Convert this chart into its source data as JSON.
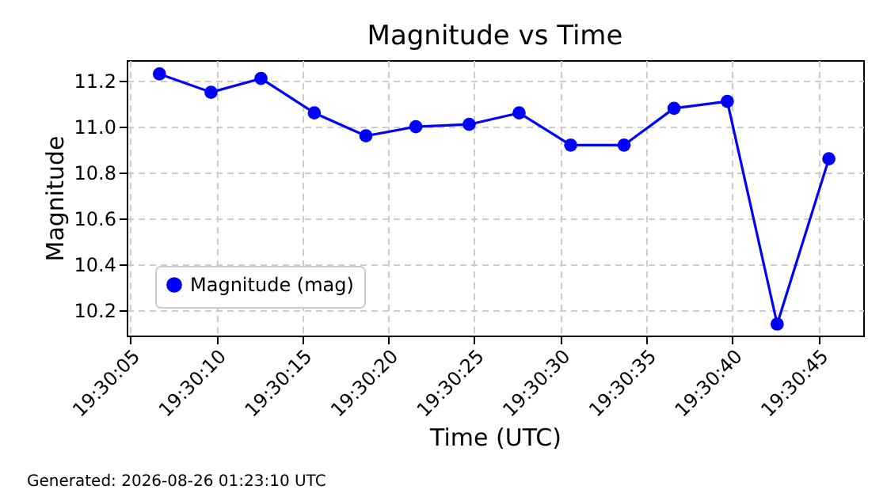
{
  "chart_data": {
    "type": "line",
    "title": "Magnitude vs Time",
    "xlabel": "Time (UTC)",
    "ylabel": "Magnitude",
    "x": [
      19.501861,
      19.502694,
      19.5035,
      19.504361,
      19.505194,
      19.506,
      19.506861,
      19.507667,
      19.5085,
      19.509361,
      19.510167,
      19.511028,
      19.511833,
      19.512667
    ],
    "series": [
      {
        "name": "Magnitude (mag)",
        "color": "#0000ff",
        "values": [
          11.23,
          11.15,
          11.21,
          11.06,
          10.96,
          11.0,
          11.01,
          11.06,
          10.92,
          10.92,
          11.08,
          11.11,
          10.14,
          10.86
        ]
      }
    ],
    "xlim": [
      19.501333,
      19.513222
    ],
    "xticks": [
      {
        "value": 19.501389,
        "label": "19:30:05"
      },
      {
        "value": 19.502778,
        "label": "19:30:10"
      },
      {
        "value": 19.504167,
        "label": "19:30:15"
      },
      {
        "value": 19.505556,
        "label": "19:30:20"
      },
      {
        "value": 19.506944,
        "label": "19:30:25"
      },
      {
        "value": 19.508333,
        "label": "19:30:30"
      },
      {
        "value": 19.509722,
        "label": "19:30:35"
      },
      {
        "value": 19.511111,
        "label": "19:30:40"
      },
      {
        "value": 19.5125,
        "label": "19:30:45"
      }
    ],
    "ylim": [
      10.09,
      11.29
    ],
    "yticks": [
      10.2,
      10.4,
      10.6,
      10.8,
      {
        "value": 11.0,
        "label": "11.0"
      },
      11.2
    ],
    "grid": true,
    "legend": "bottom left",
    "marker": "circle",
    "line_style": "solid",
    "annotations": [
      "Generated: 2026-08-26 01:23:10 UTC"
    ]
  }
}
